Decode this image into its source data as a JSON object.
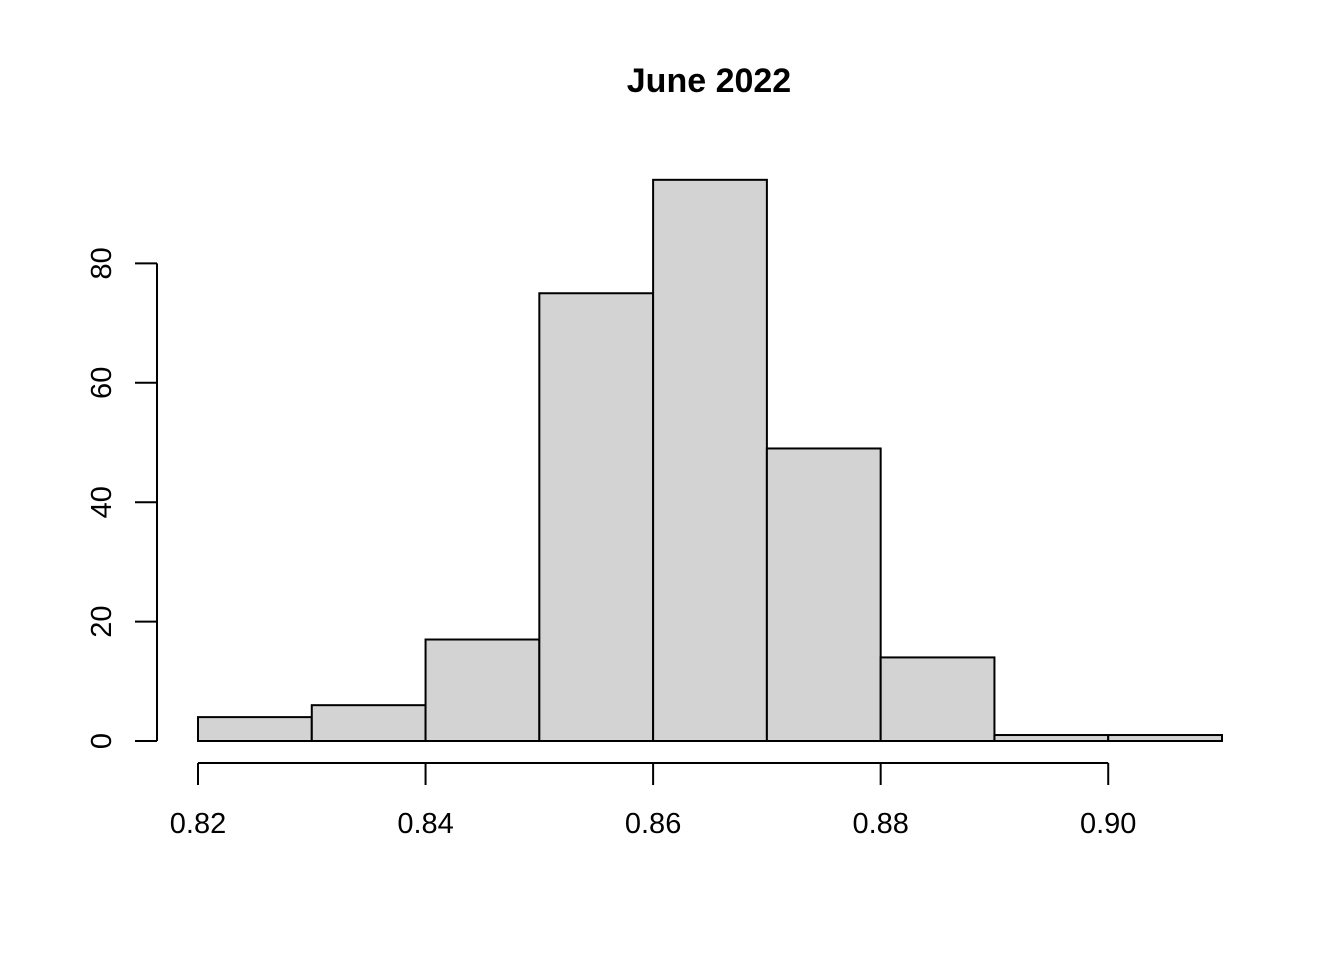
{
  "chart_data": {
    "type": "bar",
    "subtype": "histogram",
    "title": "June 2022",
    "xlabel": "",
    "ylabel": "",
    "bin_edges": [
      0.82,
      0.83,
      0.84,
      0.85,
      0.86,
      0.87,
      0.88,
      0.89,
      0.9,
      0.91
    ],
    "values": [
      4,
      6,
      17,
      75,
      94,
      49,
      14,
      1,
      1
    ],
    "x_ticks": [
      "0.82",
      "0.84",
      "0.86",
      "0.88",
      "0.90"
    ],
    "x_tick_values": [
      0.82,
      0.84,
      0.86,
      0.88,
      0.9
    ],
    "y_ticks": [
      "0",
      "20",
      "40",
      "60",
      "80"
    ],
    "y_tick_values": [
      0,
      20,
      40,
      60,
      80
    ],
    "xlim": [
      0.82,
      0.91
    ],
    "ylim": [
      0,
      94
    ],
    "grid": false,
    "legend": "none",
    "bar_color": "#d3d3d3",
    "edge_color": "#000000"
  }
}
